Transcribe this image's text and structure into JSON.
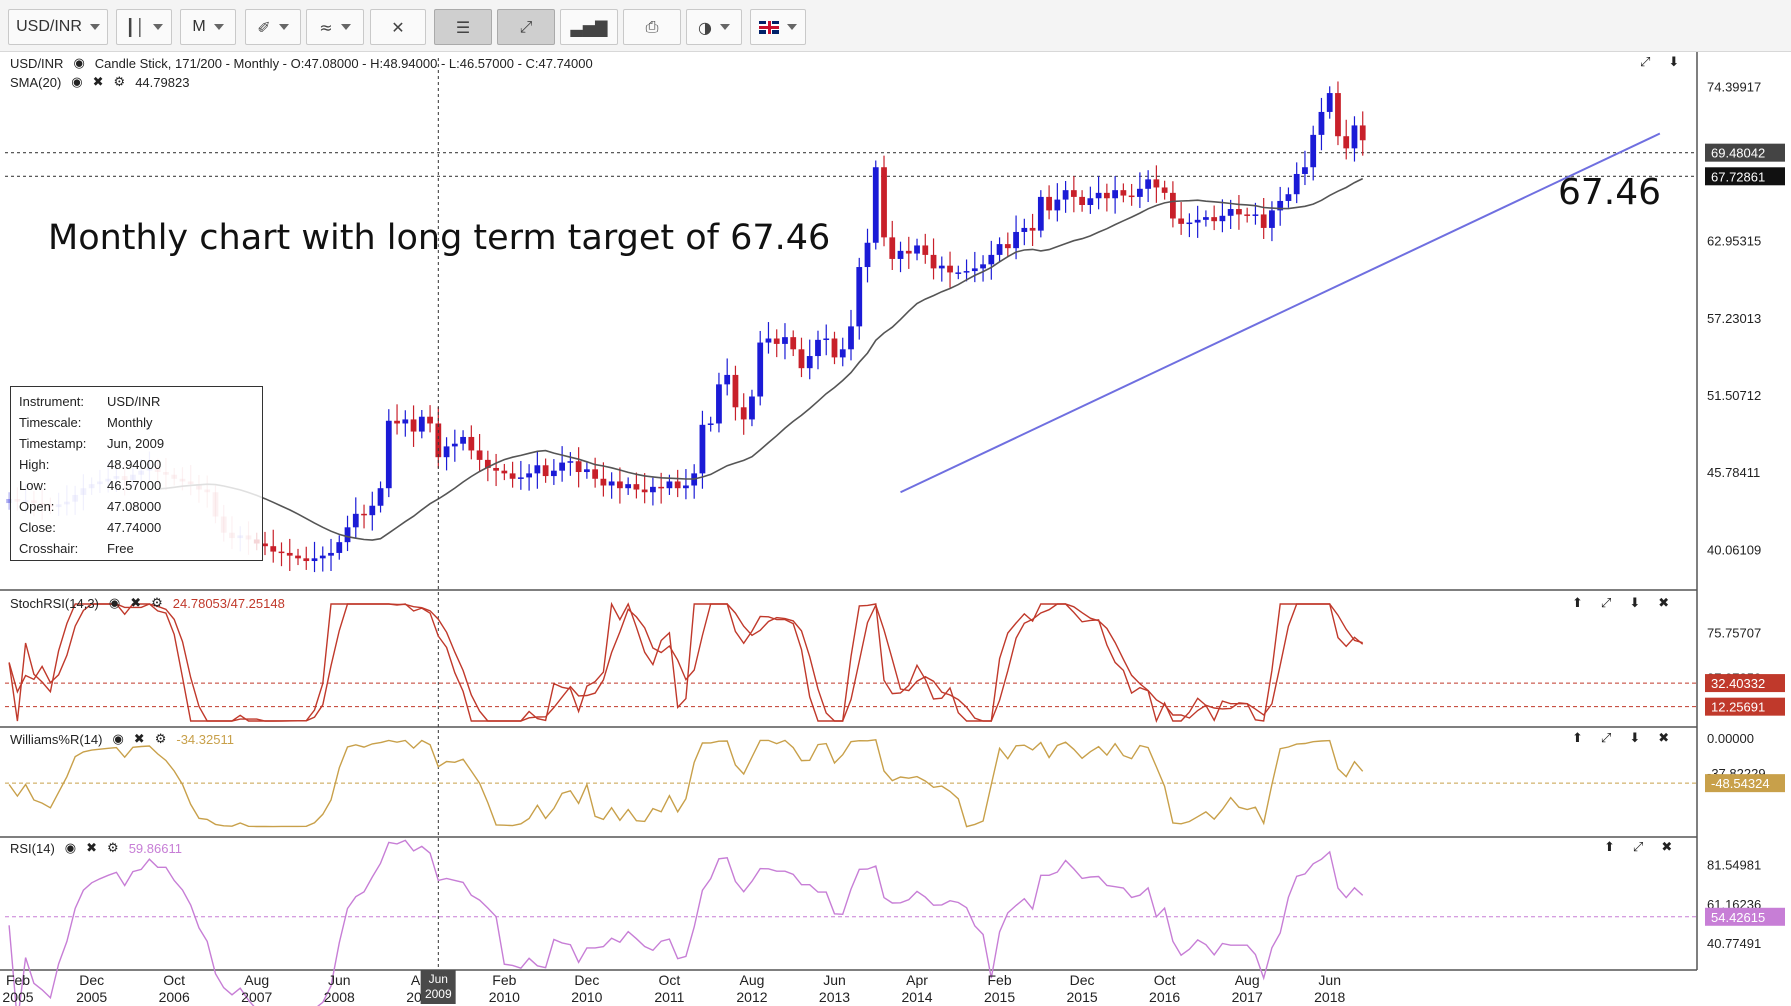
{
  "toolbar": {
    "symbol": "USD/INR",
    "interval": "M",
    "buttons": [
      {
        "name": "symbol-select",
        "label": "USD/INR",
        "caret": true
      },
      {
        "name": "chart-type-select",
        "icon": "candlestick-icon",
        "caret": true
      },
      {
        "name": "interval-select",
        "label": "M",
        "caret": true
      },
      {
        "name": "drawing-tools-select",
        "icon": "drawing-icon",
        "caret": true
      },
      {
        "name": "indicators-select",
        "icon": "indicator-icon",
        "caret": true
      },
      {
        "name": "clear-button",
        "icon": "clear-icon",
        "caret": false
      },
      {
        "name": "layout-button",
        "icon": "layout-icon",
        "caret": false
      },
      {
        "name": "fullscreen-button",
        "icon": "fullscreen-icon",
        "caret": false
      },
      {
        "name": "volume-button",
        "icon": "bars-icon",
        "caret": false
      },
      {
        "name": "print-button",
        "icon": "print-icon",
        "caret": false
      },
      {
        "name": "theme-select",
        "icon": "palette-icon",
        "caret": true
      },
      {
        "name": "language-select",
        "icon": "uk-flag-icon",
        "caret": true
      }
    ]
  },
  "main_header": {
    "line1": "USD/INR",
    "line1_desc": "Candle Stick, 171/200 - Monthly - O:47.08000 - H:48.94000 - L:46.57000 - C:47.74000",
    "sma_label": "SMA(20)",
    "sma_value": "44.79823"
  },
  "annotation": {
    "title": "Monthly chart with long term target of 67.46",
    "target": "67.46"
  },
  "info_box": [
    {
      "k": "Instrument:",
      "v": "USD/INR"
    },
    {
      "k": "Timescale:",
      "v": "Monthly"
    },
    {
      "k": "Timestamp:",
      "v": "Jun, 2009"
    },
    {
      "k": "High:",
      "v": "48.94000"
    },
    {
      "k": "Low:",
      "v": "46.57000"
    },
    {
      "k": "Open:",
      "v": "47.08000"
    },
    {
      "k": "Close:",
      "v": "47.74000"
    },
    {
      "k": "Crosshair:",
      "v": "Free"
    }
  ],
  "indicators": {
    "stoch": {
      "label": "StochRSI(14,3)",
      "value": "24.78053/47.25148"
    },
    "williams": {
      "label": "Williams%R(14)",
      "value": "-34.32511"
    },
    "rsi": {
      "label": "RSI(14)",
      "value": "59.86611"
    }
  },
  "crosshair_tag": {
    "line1": "Jun",
    "line2": "2009"
  },
  "colors": {
    "up": "#1b1bd6",
    "down": "#c8202a",
    "sma": "#555555",
    "trendline": "#6f6fe0",
    "stoch": "#c0392b",
    "williams": "#c8a04a",
    "rsi": "#c77ed6"
  },
  "chart_data": {
    "type": "candlestick",
    "instrument": "USD/INR",
    "timescale": "Monthly",
    "price_axis_ticks": [
      "74.39917",
      "69.48042",
      "67.72861",
      "62.95315",
      "57.23013",
      "51.50712",
      "45.78411",
      "40.06109"
    ],
    "price_highlight_tags": [
      {
        "value": "69.48042",
        "color": "#444444"
      },
      {
        "value": "67.72861",
        "color": "#111111"
      }
    ],
    "price_range": [
      37.2,
      76.5
    ],
    "x_ticks": [
      {
        "m": "Feb",
        "y": "2005"
      },
      {
        "m": "Dec",
        "y": "2005"
      },
      {
        "m": "Oct",
        "y": "2006"
      },
      {
        "m": "Aug",
        "y": "2007"
      },
      {
        "m": "Jun",
        "y": "2008"
      },
      {
        "m": "Apr",
        "y": "2009"
      },
      {
        "m": "Feb",
        "y": "2010"
      },
      {
        "m": "Dec",
        "y": "2010"
      },
      {
        "m": "Oct",
        "y": "2011"
      },
      {
        "m": "Aug",
        "y": "2012"
      },
      {
        "m": "Jun",
        "y": "2013"
      },
      {
        "m": "Apr",
        "y": "2014"
      },
      {
        "m": "Feb",
        "y": "2015"
      },
      {
        "m": "Dec",
        "y": "2015"
      },
      {
        "m": "Oct",
        "y": "2016"
      },
      {
        "m": "Aug",
        "y": "2017"
      },
      {
        "m": "Jun",
        "y": "2018"
      }
    ],
    "closes": [
      43.8,
      43.6,
      43.7,
      43.5,
      43.4,
      43.2,
      43.4,
      43.6,
      44.1,
      44.6,
      44.9,
      45.1,
      45.3,
      45.5,
      45.2,
      45.6,
      45.9,
      46.1,
      45.8,
      45.6,
      45.3,
      45.1,
      44.9,
      44.5,
      44.3,
      42.5,
      41.3,
      40.9,
      41.1,
      40.8,
      40.5,
      40.3,
      39.9,
      39.8,
      39.6,
      39.4,
      39.2,
      39.4,
      39.6,
      39.8,
      40.6,
      41.7,
      42.7,
      42.6,
      43.3,
      44.6,
      49.6,
      49.4,
      49.7,
      48.8,
      49.9,
      49.4,
      46.9,
      47.7,
      47.9,
      48.4,
      47.4,
      46.7,
      46.1,
      45.9,
      45.7,
      45.3,
      45.4,
      45.7,
      46.3,
      45.5,
      45.9,
      46.5,
      46.6,
      45.8,
      46.0,
      45.3,
      44.8,
      45.1,
      44.6,
      44.9,
      44.5,
      44.3,
      44.7,
      44.6,
      45.1,
      44.6,
      44.8,
      45.7,
      49.3,
      49.4,
      52.3,
      53.0,
      50.6,
      49.7,
      51.4,
      55.4,
      55.7,
      55.3,
      55.8,
      54.9,
      53.5,
      54.4,
      55.6,
      55.7,
      54.3,
      54.9,
      56.6,
      61.0,
      62.8,
      68.4,
      63.2,
      61.6,
      62.2,
      62.0,
      62.6,
      61.9,
      60.9,
      61.1,
      60.6,
      60.6,
      60.7,
      60.9,
      61.2,
      61.9,
      62.7,
      62.4,
      63.6,
      63.9,
      63.7,
      66.2,
      65.2,
      66.0,
      66.7,
      66.2,
      65.6,
      66.1,
      66.5,
      66.1,
      66.7,
      66.3,
      66.2,
      66.8,
      67.5,
      66.9,
      66.5,
      64.6,
      64.2,
      64.3,
      64.5,
      64.7,
      64.4,
      64.8,
      65.3,
      64.9,
      64.8,
      64.9,
      63.9,
      65.2,
      65.9,
      66.4,
      67.9,
      68.4,
      70.8,
      72.5,
      73.9,
      70.7,
      69.8,
      71.5,
      70.4
    ],
    "sma20_start_index": 18,
    "trendline_from_to": [
      [
        108,
        44.3
      ],
      [
        200,
        70.9
      ]
    ],
    "horizontal_levels": [
      69.48042,
      67.72861
    ],
    "crosshair_index": 52,
    "stoch_rsi": {
      "ticks": [
        "75.75707",
        "37.07859",
        "32.40332",
        "12.25691"
      ],
      "levels": [
        32.40332,
        12.25691
      ]
    },
    "williams_r": {
      "ticks": [
        "0.00000",
        "-37.82229",
        "-48.54324"
      ],
      "levels": [
        -48.54324
      ]
    },
    "rsi": {
      "ticks": [
        "81.54981",
        "61.16236",
        "54.42615",
        "40.77491"
      ],
      "levels": [
        54.42615
      ]
    }
  }
}
